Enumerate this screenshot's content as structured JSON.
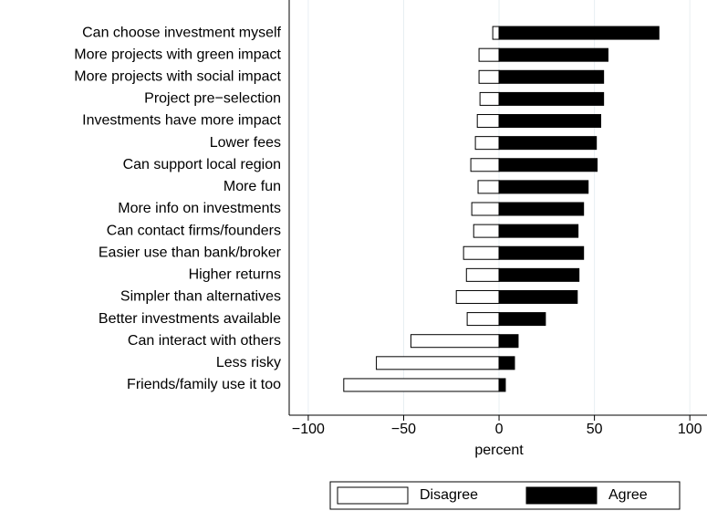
{
  "chart_data": {
    "type": "diverging-bar",
    "x_label": "percent",
    "categories": [
      "Can choose investment myself",
      "More projects with green impact",
      "More projects with social impact",
      "Project pre−selection",
      "Investments have more impact",
      "Lower fees",
      "Can support local region",
      "More fun",
      "More info on investments",
      "Can contact firms/founders",
      "Easier use than bank/broker",
      "Higher returns",
      "Simpler than alternatives",
      "Better investments available",
      "Can interact with others",
      "Less risky",
      "Friends/family use it too"
    ],
    "series": [
      {
        "name": "Disagree",
        "color": "#ffffff",
        "values": [
          -3.3,
          -10.5,
          -10.5,
          -10,
          -11.4,
          -12.4,
          -14.8,
          -11,
          -14.3,
          -13.3,
          -18.6,
          -17.1,
          -22.4,
          -16.7,
          -46.2,
          -64.3,
          -81.4
        ]
      },
      {
        "name": "Agree",
        "color": "#000000",
        "values": [
          83.8,
          57.1,
          54.8,
          54.8,
          53.3,
          51,
          51.4,
          46.7,
          44.3,
          41.4,
          44.3,
          41.9,
          41,
          24.3,
          10,
          8.1,
          3.3
        ]
      }
    ],
    "xlim": [
      -110,
      109
    ],
    "xticks": [
      {
        "value": -100,
        "label": "−100"
      },
      {
        "value": -50,
        "label": "−50"
      },
      0,
      50,
      100
    ],
    "grid": true,
    "legend": "bottom"
  }
}
